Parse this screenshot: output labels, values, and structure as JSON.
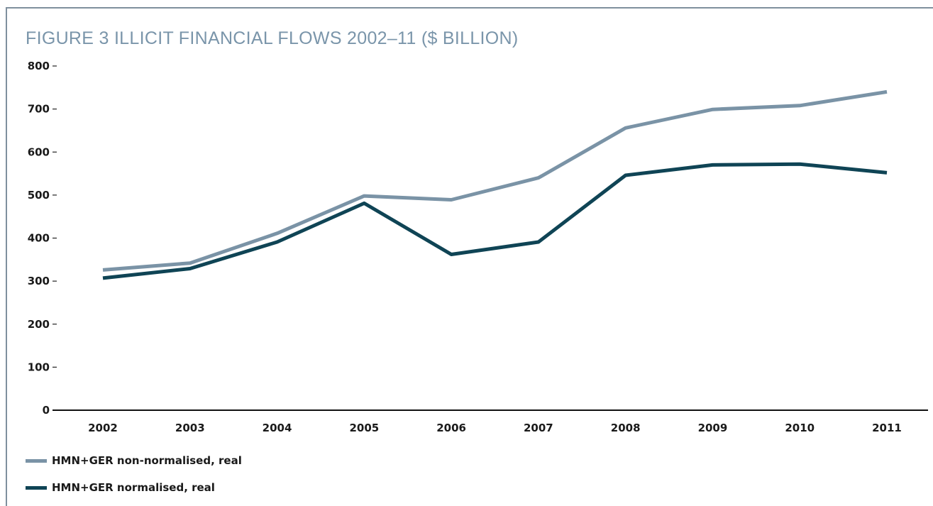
{
  "chart_data": {
    "type": "line",
    "title": "FIGURE 3  ILLICIT FINANCIAL FLOWS 2002–11 ($ BILLION)",
    "xlabel": "",
    "ylabel": "",
    "categories": [
      "2002",
      "2003",
      "2004",
      "2005",
      "2006",
      "2007",
      "2008",
      "2009",
      "2010",
      "2011"
    ],
    "ylim": [
      0,
      800
    ],
    "yticks": [
      0,
      100,
      200,
      300,
      400,
      500,
      600,
      700,
      800
    ],
    "grid": false,
    "legend_position": "bottom-left",
    "series": [
      {
        "name": "HMN+GER non-normalised, real",
        "color": "#7a93a6",
        "values": [
          326,
          342,
          411,
          498,
          489,
          540,
          656,
          699,
          708,
          740
        ]
      },
      {
        "name": "HMN+GER normalised, real",
        "color": "#0f4455",
        "values": [
          307,
          329,
          391,
          481,
          362,
          391,
          546,
          570,
          572,
          552
        ]
      }
    ]
  }
}
